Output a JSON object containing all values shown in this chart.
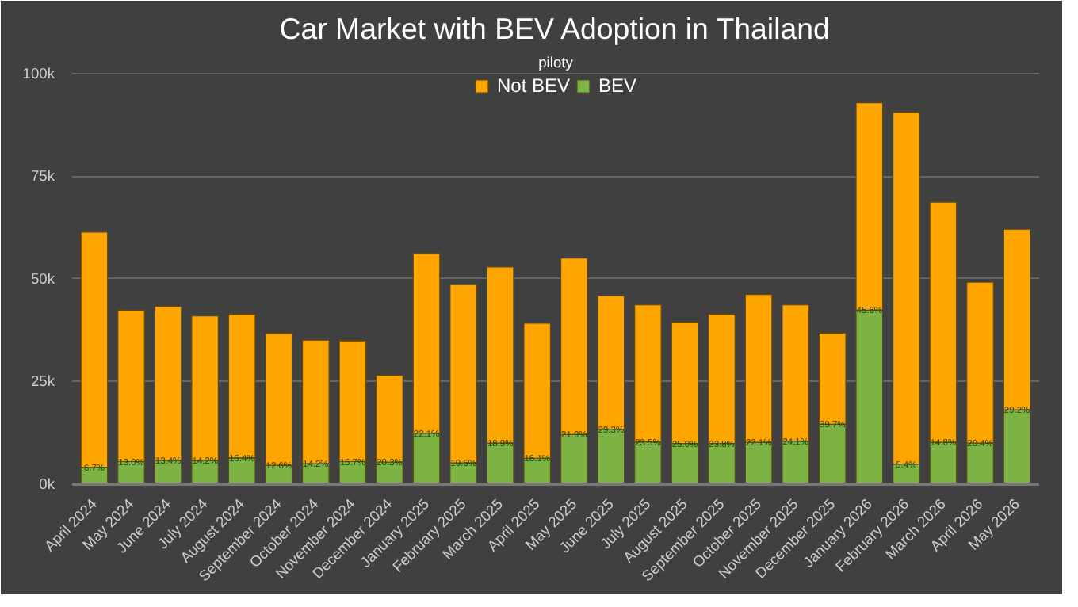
{
  "chart_data": {
    "type": "bar",
    "title": "Car Market with BEV Adoption in Thailand",
    "subtitle": "piloty",
    "categories": [
      "April 2024",
      "May 2024",
      "June 2024",
      "July 2024",
      "August 2024",
      "September 2024",
      "October 2024",
      "November 2024",
      "December 2024",
      "January 2025",
      "February 2025",
      "March 2025",
      "April 2025",
      "May 2025",
      "June 2025",
      "July 2025",
      "August 2025",
      "September 2025",
      "October 2025",
      "November 2025",
      "December 2025",
      "January 2026",
      "February 2026",
      "March 2026",
      "April 2026",
      "May 2026"
    ],
    "stacked": true,
    "series": [
      {
        "name": "BEV",
        "color": "#7cb342",
        "values": [
          4100,
          5500,
          5800,
          5800,
          6400,
          4600,
          5000,
          5500,
          5400,
          12400,
          5200,
          10000,
          6300,
          12100,
          13400,
          10300,
          9900,
          9900,
          10200,
          10500,
          14600,
          42400,
          4900,
          10200,
          10000,
          18100
        ]
      },
      {
        "name": "Not BEV",
        "color": "#ffa500",
        "values": [
          57300,
          36900,
          37500,
          35200,
          35000,
          32100,
          30100,
          29400,
          21100,
          43800,
          43400,
          42900,
          32900,
          43000,
          32500,
          33400,
          29600,
          31500,
          36000,
          33200,
          22200,
          50500,
          85700,
          58500,
          39200,
          44000
        ]
      }
    ],
    "annotations": [
      {
        "text": "6.7%",
        "x": "April 2024",
        "y": 4100
      },
      {
        "text": "13.0%",
        "x": "May 2024",
        "y": 5500
      },
      {
        "text": "13.4%",
        "x": "June 2024",
        "y": 5800
      },
      {
        "text": "14.2%",
        "x": "July 2024",
        "y": 5800
      },
      {
        "text": "15.4%",
        "x": "August 2024",
        "y": 6400
      },
      {
        "text": "12.6%",
        "x": "September 2024",
        "y": 4600
      },
      {
        "text": "14.2%",
        "x": "October 2024",
        "y": 5000
      },
      {
        "text": "15.7%",
        "x": "November 2024",
        "y": 5500
      },
      {
        "text": "20.3%",
        "x": "December 2024",
        "y": 5400
      },
      {
        "text": "22.1%",
        "x": "January 2025",
        "y": 12400
      },
      {
        "text": "10.6%",
        "x": "February 2025",
        "y": 5200
      },
      {
        "text": "18.9%",
        "x": "March 2025",
        "y": 10000
      },
      {
        "text": "16.1%",
        "x": "April 2025",
        "y": 6300
      },
      {
        "text": "21.9%",
        "x": "May 2025",
        "y": 12100
      },
      {
        "text": "29.3%",
        "x": "June 2025",
        "y": 13400
      },
      {
        "text": "23.5%",
        "x": "July 2025",
        "y": 10300
      },
      {
        "text": "25.0%",
        "x": "August 2025",
        "y": 9900
      },
      {
        "text": "23.8%",
        "x": "September 2025",
        "y": 9900
      },
      {
        "text": "22.1%",
        "x": "October 2025",
        "y": 10200
      },
      {
        "text": "24.1%",
        "x": "November 2025",
        "y": 10500
      },
      {
        "text": "39.7%",
        "x": "December 2025",
        "y": 14600
      },
      {
        "text": "45.6%",
        "x": "January 2026",
        "y": 42400
      },
      {
        "text": "5.4%",
        "x": "February 2026",
        "y": 4900
      },
      {
        "text": "14.8%",
        "x": "March 2026",
        "y": 10200
      },
      {
        "text": "20.4%",
        "x": "April 2026",
        "y": 10000
      },
      {
        "text": "29.2%",
        "x": "May 2026",
        "y": 18100
      }
    ],
    "ylim": [
      0,
      105000
    ],
    "yticks": [
      {
        "value": 0,
        "label": "0k"
      },
      {
        "value": 25000,
        "label": "25k"
      },
      {
        "value": 50000,
        "label": "50k"
      },
      {
        "value": 75000,
        "label": "75k"
      },
      {
        "value": 100000,
        "label": "100k"
      }
    ],
    "grid": "y",
    "legend": "top"
  }
}
